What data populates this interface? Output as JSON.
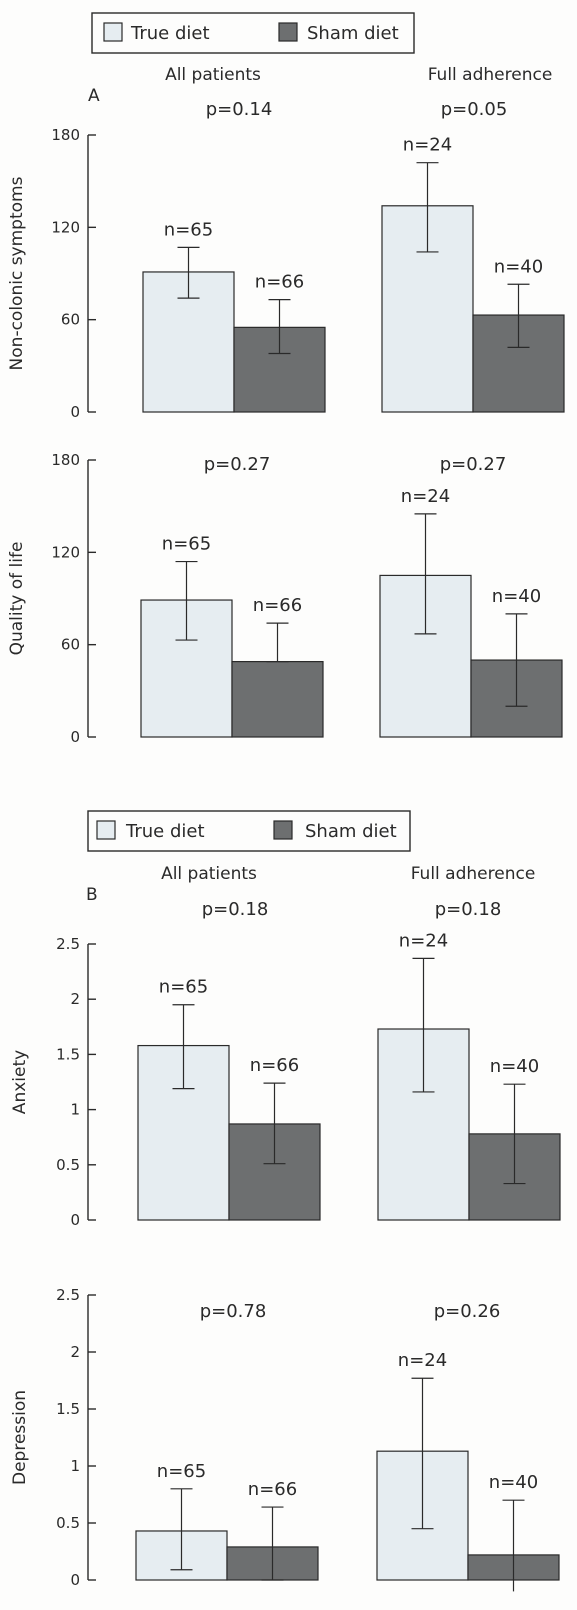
{
  "panels": [
    {
      "id": "A",
      "letter": "A",
      "legend": [
        {
          "label": "True diet",
          "color": "#e6edf1"
        },
        {
          "label": "Sham diet",
          "color": "#6d6f70"
        }
      ],
      "groups": [
        "All patients",
        "Full adherence"
      ]
    },
    {
      "id": "B",
      "letter": "B",
      "legend": [
        {
          "label": "True diet",
          "color": "#e6edf1"
        },
        {
          "label": "Sham diet",
          "color": "#6d6f70"
        }
      ],
      "groups": [
        "All patients",
        "Full adherence"
      ]
    }
  ],
  "chart_data": [
    {
      "type": "bar",
      "panel": "A",
      "ylabel": "Non-colonic symptoms",
      "ylim": [
        0,
        180
      ],
      "yticks": [
        "0",
        "60",
        "120",
        "180"
      ],
      "categories": [
        "All patients",
        "Full adherence"
      ],
      "series": [
        {
          "name": "True diet",
          "values": [
            91,
            134
          ],
          "error": [
            [
              74,
              107
            ],
            [
              104,
              162
            ]
          ],
          "n": [
            "n=65",
            "n=24"
          ]
        },
        {
          "name": "Sham diet",
          "values": [
            55,
            63
          ],
          "error": [
            [
              38,
              73
            ],
            [
              42,
              83
            ]
          ],
          "n": [
            "n=66",
            "n=40"
          ]
        }
      ],
      "p_values": [
        "p=0.14",
        "p=0.05"
      ]
    },
    {
      "type": "bar",
      "panel": "A",
      "ylabel": "Quality of life",
      "ylim": [
        0,
        180
      ],
      "yticks": [
        "0",
        "60",
        "120",
        "180"
      ],
      "categories": [
        "All patients",
        "Full adherence"
      ],
      "series": [
        {
          "name": "True diet",
          "values": [
            89,
            105
          ],
          "error": [
            [
              63,
              114
            ],
            [
              67,
              145
            ]
          ],
          "n": [
            "n=65",
            "n=24"
          ]
        },
        {
          "name": "Sham diet",
          "values": [
            49,
            50
          ],
          "error": [
            [
              49,
              74
            ],
            [
              20,
              80
            ]
          ],
          "n": [
            "n=66",
            "n=40"
          ]
        }
      ],
      "p_values": [
        "p=0.27",
        "p=0.27"
      ]
    },
    {
      "type": "bar",
      "panel": "B",
      "ylabel": "Anxiety",
      "ylim": [
        0,
        2.5
      ],
      "yticks": [
        "0",
        "0.5",
        "1",
        "1.5",
        "2",
        "2.5"
      ],
      "categories": [
        "All patients",
        "Full adherence"
      ],
      "series": [
        {
          "name": "True diet",
          "values": [
            1.58,
            1.73
          ],
          "error": [
            [
              1.19,
              1.95
            ],
            [
              1.16,
              2.37
            ]
          ],
          "n": [
            "n=65",
            "n=24"
          ]
        },
        {
          "name": "Sham diet",
          "values": [
            0.87,
            0.78
          ],
          "error": [
            [
              0.51,
              1.24
            ],
            [
              0.33,
              1.23
            ]
          ],
          "n": [
            "n=66",
            "n=40"
          ]
        }
      ],
      "p_values": [
        "p=0.18",
        "p=0.18"
      ]
    },
    {
      "type": "bar",
      "panel": "B",
      "ylabel": "Depression",
      "ylim": [
        0,
        2.5
      ],
      "yticks": [
        "0",
        "0.5",
        "1",
        "1.5",
        "2",
        "2.5"
      ],
      "categories": [
        "All patients",
        "Full adherence"
      ],
      "series": [
        {
          "name": "True diet",
          "values": [
            0.43,
            1.13
          ],
          "error": [
            [
              0.09,
              0.8
            ],
            [
              0.45,
              1.77
            ]
          ],
          "n": [
            "n=65",
            "n=24"
          ]
        },
        {
          "name": "Sham diet",
          "values": [
            0.29,
            0.22
          ],
          "error": [
            [
              0.0,
              0.64
            ],
            [
              -0.1,
              0.7
            ]
          ],
          "n": [
            "n=66",
            "n=40"
          ]
        }
      ],
      "p_values": [
        "p=0.78",
        "p=0.26"
      ]
    }
  ]
}
